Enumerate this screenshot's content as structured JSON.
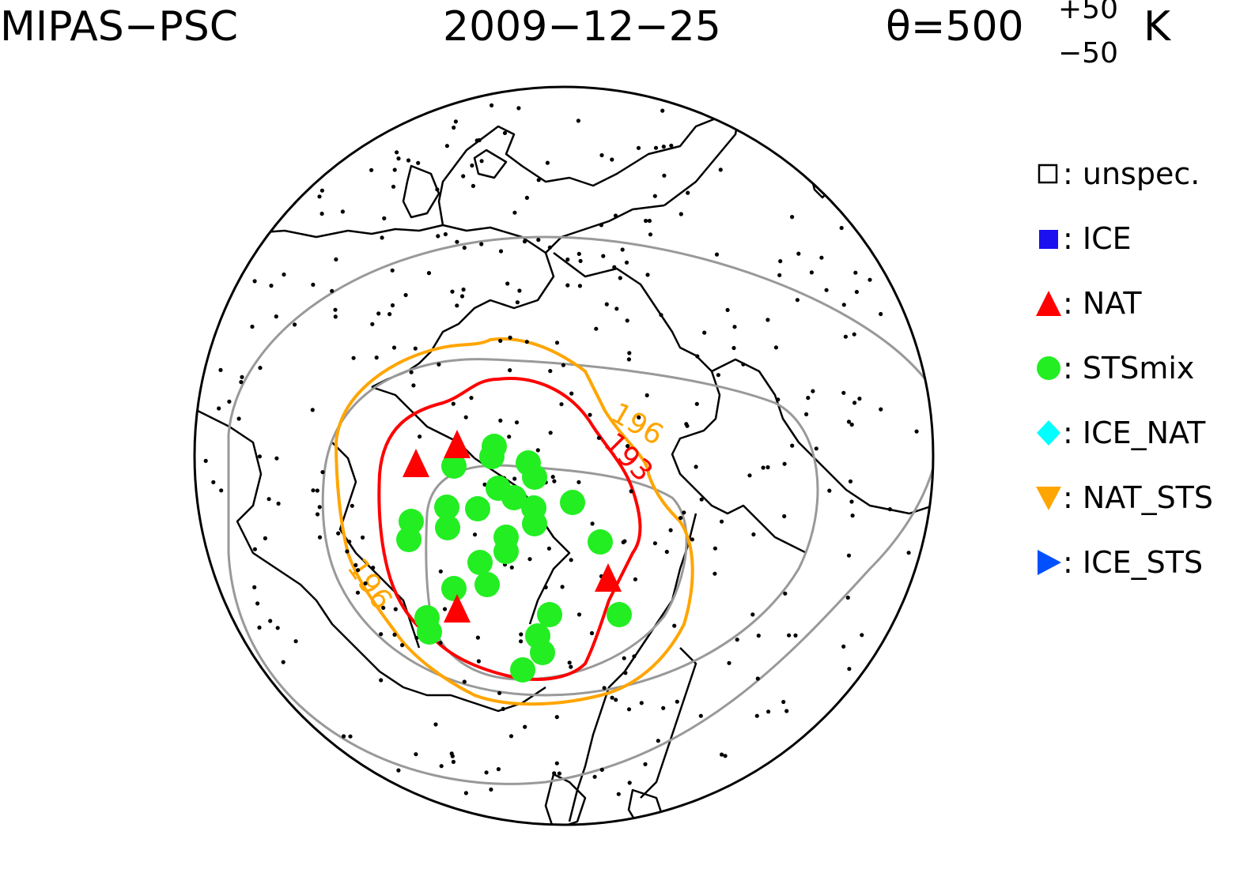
{
  "header": {
    "instrument": "MIPAS−PSC",
    "date": "2009−12−25",
    "theta_prefix": "θ=500",
    "theta_upper": "+50",
    "theta_lower": "−50",
    "theta_unit": "K"
  },
  "contours": {
    "label_196": "196",
    "label_193": "193",
    "colors": {
      "gray": "#999999",
      "orange": "#ffa500",
      "red": "#ff0000"
    }
  },
  "legend": [
    {
      "symbol": "open-square",
      "color": "#000000",
      "label": ": unspec."
    },
    {
      "symbol": "filled-square",
      "color": "#1a10f0",
      "label": ": ICE"
    },
    {
      "symbol": "triangle-up",
      "color": "#ff0000",
      "label": ": NAT"
    },
    {
      "symbol": "circle",
      "color": "#22ee22",
      "label": ": STSmix"
    },
    {
      "symbol": "diamond",
      "color": "#00ffff",
      "label": ": ICE_NAT"
    },
    {
      "symbol": "triangle-down",
      "color": "#ffa500",
      "label": ": NAT_STS"
    },
    {
      "symbol": "triangle-right",
      "color": "#0050ff",
      "label": ": ICE_STS"
    }
  ]
}
